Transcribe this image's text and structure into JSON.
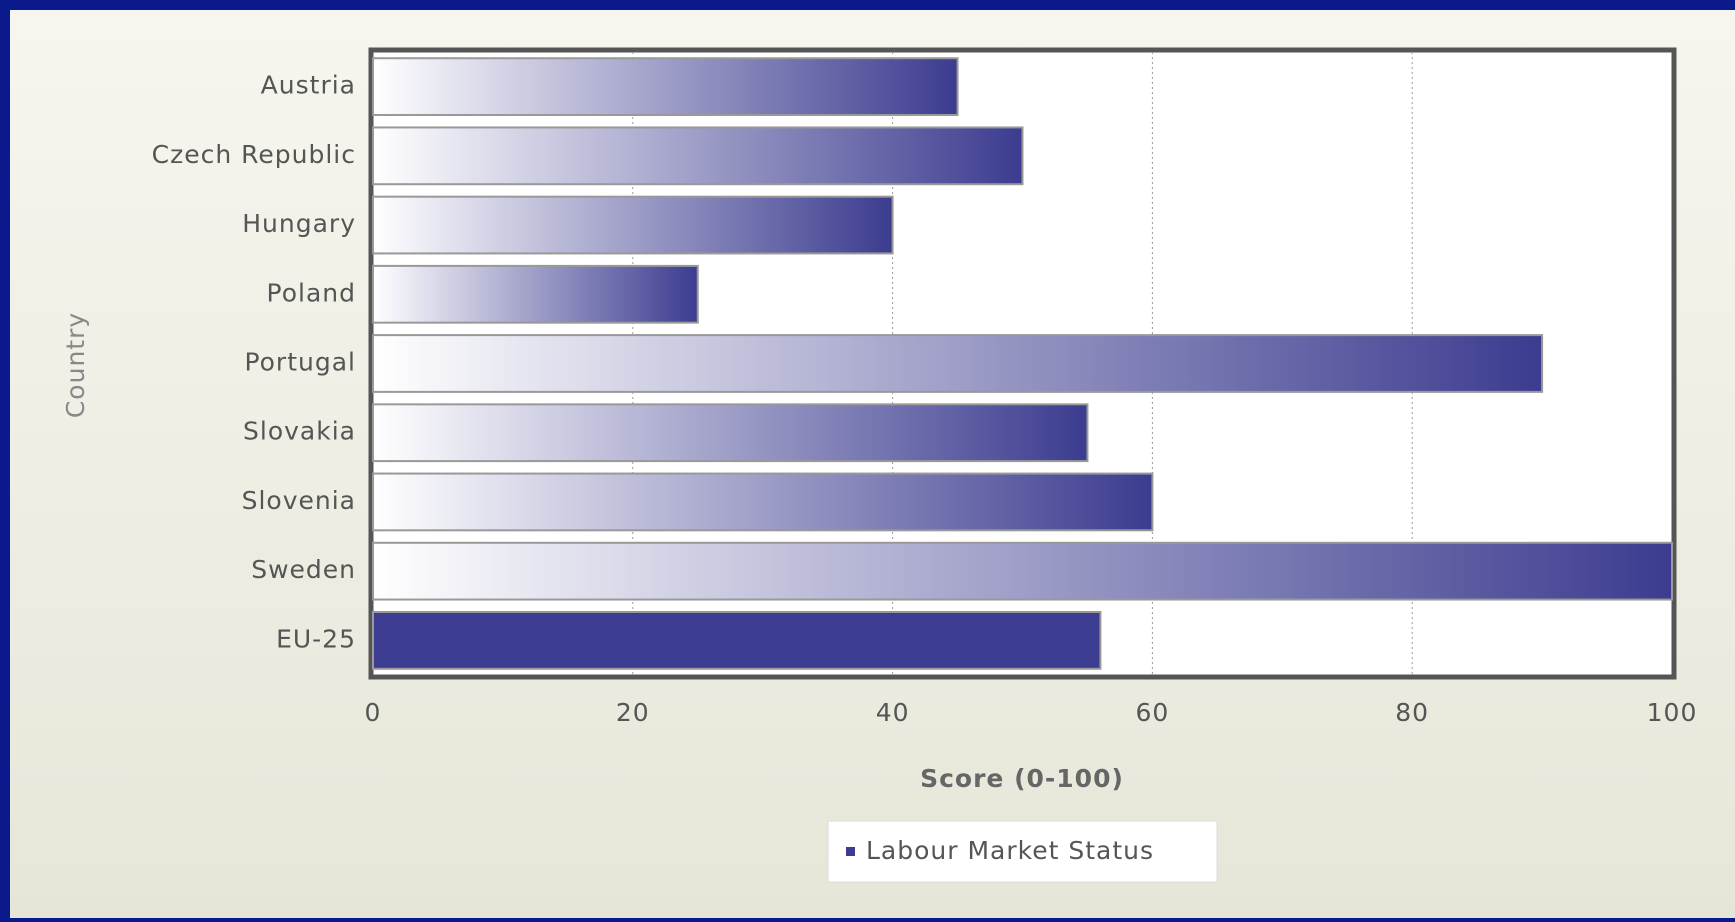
{
  "chart_data": {
    "type": "barh",
    "categories": [
      "Austria",
      "Czech Republic",
      "Hungary",
      "Poland",
      "Portugal",
      "Slovakia",
      "Slovenia",
      "Sweden",
      "EU-25"
    ],
    "series": [
      {
        "name": "Labour Market Status",
        "color": "#3c3c90",
        "values": [
          45,
          50,
          40,
          25,
          90,
          55,
          60,
          100,
          56
        ],
        "fills": [
          "gradient",
          "gradient",
          "gradient",
          "gradient",
          "gradient",
          "gradient",
          "gradient",
          "gradient",
          "solid"
        ]
      }
    ],
    "xlabel": "Score (0-100)",
    "ylabel": "Country",
    "xlim": [
      0,
      100
    ],
    "xticks": [
      0,
      20,
      40,
      60,
      80,
      100
    ],
    "grid": true
  }
}
